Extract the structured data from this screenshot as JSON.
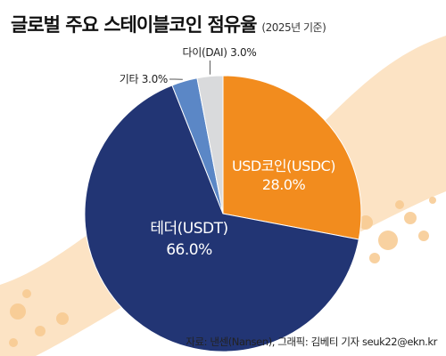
{
  "header": {
    "title": "글로벌 주요 스테이블코인 점유율",
    "subtitle": "(2025년 기준)"
  },
  "source": "자료: 낸센(Nansen), 그래픽: 김베티 기자 seuk22@ekn.kr",
  "colors": {
    "usdc": "#F28C1E",
    "usdt": "#223574",
    "other": "#5B87C6",
    "dai": "#D9DADC",
    "background_band": "#FCE3C4",
    "band_spots": "#F7C98F"
  },
  "chart_data": {
    "type": "pie",
    "slices": [
      {
        "label": "USD코인(USDC)",
        "value_label": "28.0%",
        "value": 28.0,
        "color": "#F28C1E",
        "label_style": "inside-light"
      },
      {
        "label": "테더(USDT)",
        "value_label": "66.0%",
        "value": 66.0,
        "color": "#223574",
        "label_style": "inside-light"
      },
      {
        "label": "기타",
        "value_label": "3.0%",
        "value": 3.0,
        "color": "#5B87C6",
        "label_style": "outside"
      },
      {
        "label": "다이(DAI)",
        "value_label": "3.0%",
        "value": 3.0,
        "color": "#D9DADC",
        "label_style": "outside"
      }
    ],
    "start": "12 o'clock",
    "direction": "clockwise",
    "legend": "none"
  }
}
